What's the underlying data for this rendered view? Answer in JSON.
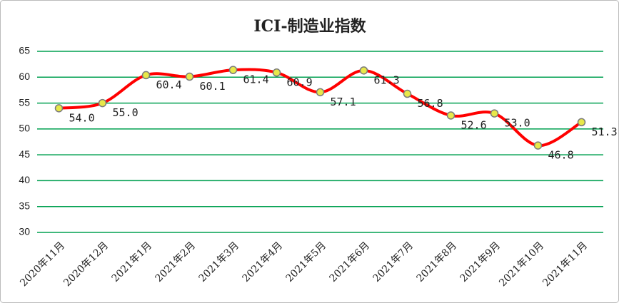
{
  "chart_data": {
    "type": "line",
    "title": "ICI-制造业指数",
    "categories": [
      "2020年11月",
      "2020年12月",
      "2021年1月",
      "2021年2月",
      "2021年3月",
      "2021年4月",
      "2021年5月",
      "2021年6月",
      "2021年7月",
      "2021年8月",
      "2021年9月",
      "2021年10月",
      "2021年11月"
    ],
    "series": [
      {
        "name": "ICI-制造业指数",
        "color": "#ff0000",
        "values": [
          54.0,
          55.0,
          60.4,
          60.1,
          61.4,
          60.9,
          57.1,
          61.3,
          56.8,
          52.6,
          53.0,
          46.8,
          51.3
        ],
        "value_labels": [
          "54.0",
          "55.0",
          "60.4",
          "60.1",
          "61.4",
          "60.9",
          "57.1",
          "61.3",
          "56.8",
          "52.6",
          "53.0",
          "46.8",
          "51.3"
        ]
      }
    ],
    "ylim": [
      30,
      65
    ],
    "yticks": [
      30,
      35,
      40,
      45,
      50,
      55,
      60,
      65
    ],
    "grid": true,
    "grid_color": "#00a050"
  }
}
